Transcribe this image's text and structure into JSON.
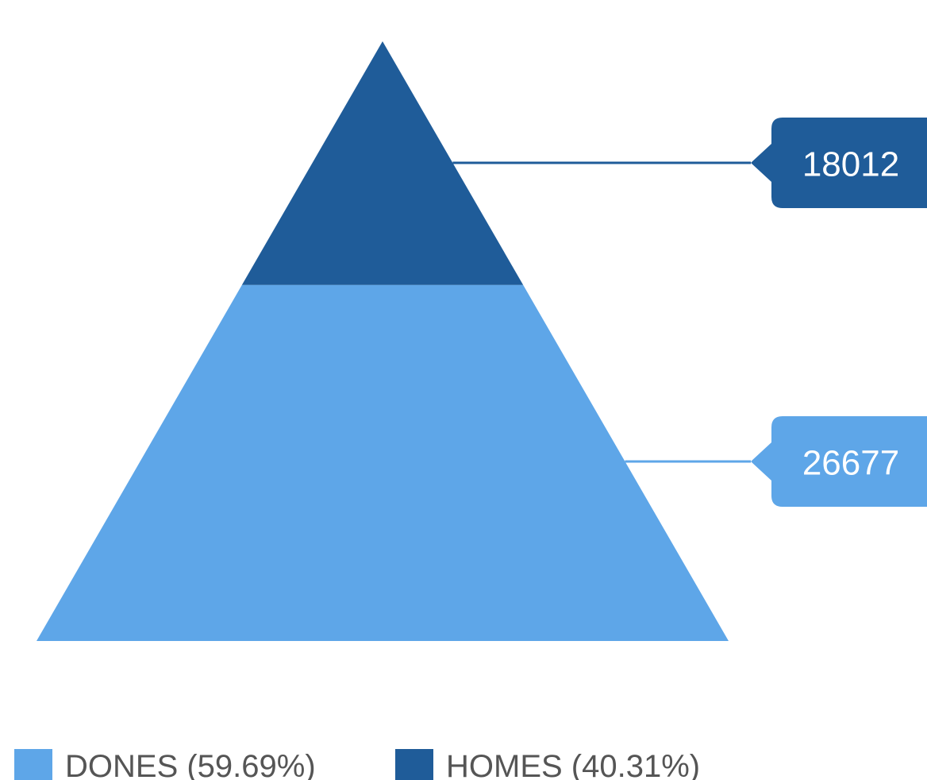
{
  "chart_data": {
    "type": "pyramid",
    "title": "",
    "segments": [
      {
        "name": "HOMES",
        "value": 18012,
        "percent": 40.31,
        "color": "#1f5c99"
      },
      {
        "name": "DONES",
        "value": 26677,
        "percent": 59.69,
        "color": "#5ea6e8"
      }
    ],
    "legend": {
      "position": "bottom-left",
      "items": [
        {
          "label": "DONES (59.69%)",
          "color": "#5ea6e8"
        },
        {
          "label": "HOMES (40.31%)",
          "color": "#1f5c99"
        }
      ]
    },
    "value_labels": [
      "18012",
      "26677"
    ]
  }
}
